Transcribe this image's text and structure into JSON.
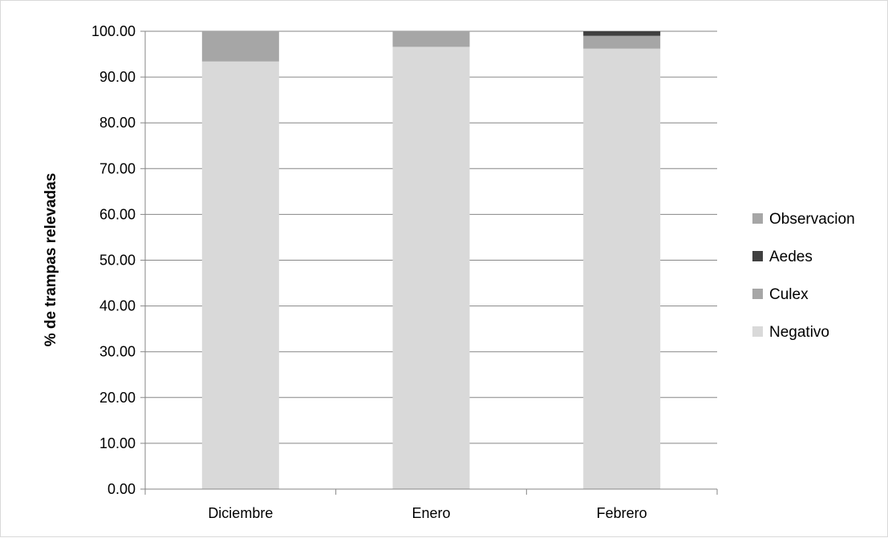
{
  "chart_data": {
    "type": "bar",
    "stacked": true,
    "categories": [
      "Diciembre",
      "Enero",
      "Febrero"
    ],
    "series": [
      {
        "name": "Negativo",
        "color": "#d9d9d9",
        "values": [
          93.4,
          96.6,
          96.2
        ]
      },
      {
        "name": "Culex",
        "color": "#a6a6a6",
        "values": [
          6.6,
          3.4,
          2.8
        ]
      },
      {
        "name": "Aedes",
        "color": "#404040",
        "values": [
          0,
          0,
          1.0
        ]
      },
      {
        "name": "Observacion",
        "color": "#a6a6a6",
        "values": [
          0,
          0,
          0
        ]
      }
    ],
    "legend_order": [
      "Observacion",
      "Aedes",
      "Culex",
      "Negativo"
    ],
    "legend_position": "right",
    "ylabel": "% de trampas relevadas",
    "xlabel": "",
    "ylim": [
      0,
      100
    ],
    "yticks": [
      "0.00",
      "10.00",
      "20.00",
      "30.00",
      "40.00",
      "50.00",
      "60.00",
      "70.00",
      "80.00",
      "90.00",
      "100.00"
    ],
    "grid": true
  }
}
